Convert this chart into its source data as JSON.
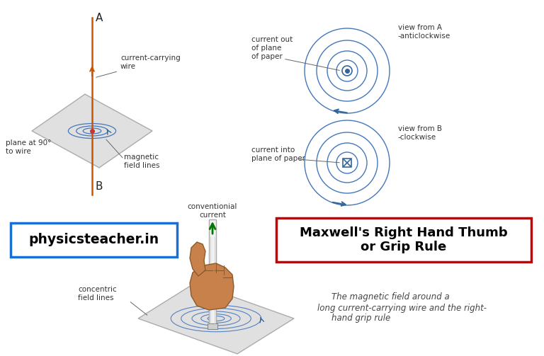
{
  "bg_color": "#ffffff",
  "physteacher_text": "physicsteacher.in",
  "physteacher_color": "#1a6fd4",
  "maxwell_title": "Maxwell's Right Hand Thumb\nor Grip Rule",
  "maxwell_color": "#cc0000",
  "caption_line1": "The magnetic field around a",
  "caption_line2": "long current-carrying wire and the right-",
  "caption_line3": "hand grip rule",
  "wire_color": "#cc5500",
  "field_line_color": "#4477bb",
  "arrow_color": "#336699",
  "label_color": "#333333",
  "dot_symbol_color": "#336699",
  "cross_symbol_color": "#336699",
  "green_arrow_color": "#007700",
  "plane_face_color": "#d0d0d0",
  "plane_edge_color": "#888888",
  "hand_skin_color": "#c8814a",
  "hand_edge_color": "#8b5a2b"
}
